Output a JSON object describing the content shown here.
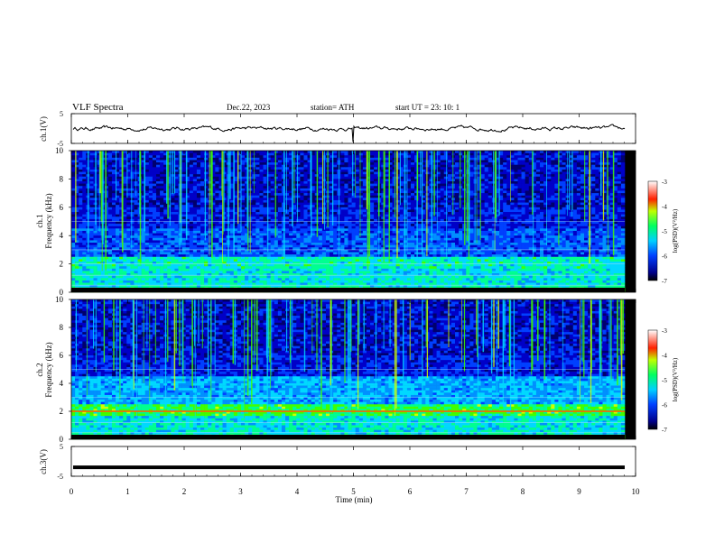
{
  "header": {
    "title": "VLF  Spectra",
    "date": "Dec.22, 2023",
    "station": "station= ATH",
    "start": "start  UT  =   23: 10: 1"
  },
  "chart_data": [
    {
      "type": "line",
      "ylabel": "ch.1(V)",
      "ylim": [
        -5,
        5
      ],
      "yticks": [
        "5",
        "-5"
      ],
      "xlim": [
        0,
        10
      ],
      "description_values": [
        0.0
      ]
    },
    {
      "type": "heatmap",
      "ylabel": "Frequency  (kHz)",
      "channel": "ch.1",
      "ylim": [
        0,
        10
      ],
      "yticks": [
        "0",
        "2",
        "4",
        "6",
        "8",
        "10"
      ],
      "xlim": [
        0,
        10
      ],
      "colorbar": {
        "label": "log(PSD)(V²/Hz)",
        "ticks": [
          "-3",
          "-4",
          "-5",
          "-6",
          "-7"
        ],
        "range": [
          -7,
          -3
        ]
      }
    },
    {
      "type": "heatmap",
      "ylabel": "Frequency  (kHz)",
      "channel": "ch.2",
      "ylim": [
        0,
        10
      ],
      "yticks": [
        "0",
        "2",
        "4",
        "6",
        "8",
        "10"
      ],
      "xlim": [
        0,
        10
      ],
      "colorbar": {
        "label": "log(PSD)(V²/Hz)",
        "ticks": [
          "-3",
          "-4",
          "-5",
          "-6",
          "-7"
        ],
        "range": [
          -7,
          -3
        ]
      }
    },
    {
      "type": "line",
      "ylabel": "ch.3(V)",
      "ylim": [
        -5,
        5
      ],
      "yticks": [
        "5",
        "-5"
      ],
      "xlim": [
        0,
        10
      ],
      "values": [
        -2.0
      ]
    }
  ],
  "xaxis": {
    "label": "Time  (min)",
    "ticks": [
      "0",
      "1",
      "2",
      "3",
      "4",
      "5",
      "6",
      "7",
      "8",
      "9",
      "10"
    ]
  },
  "colors": {
    "spec_low": "#00007a",
    "spec_mid": "#00c8c8",
    "spec_high": "#00e000",
    "spec_peak": "#e00000"
  }
}
